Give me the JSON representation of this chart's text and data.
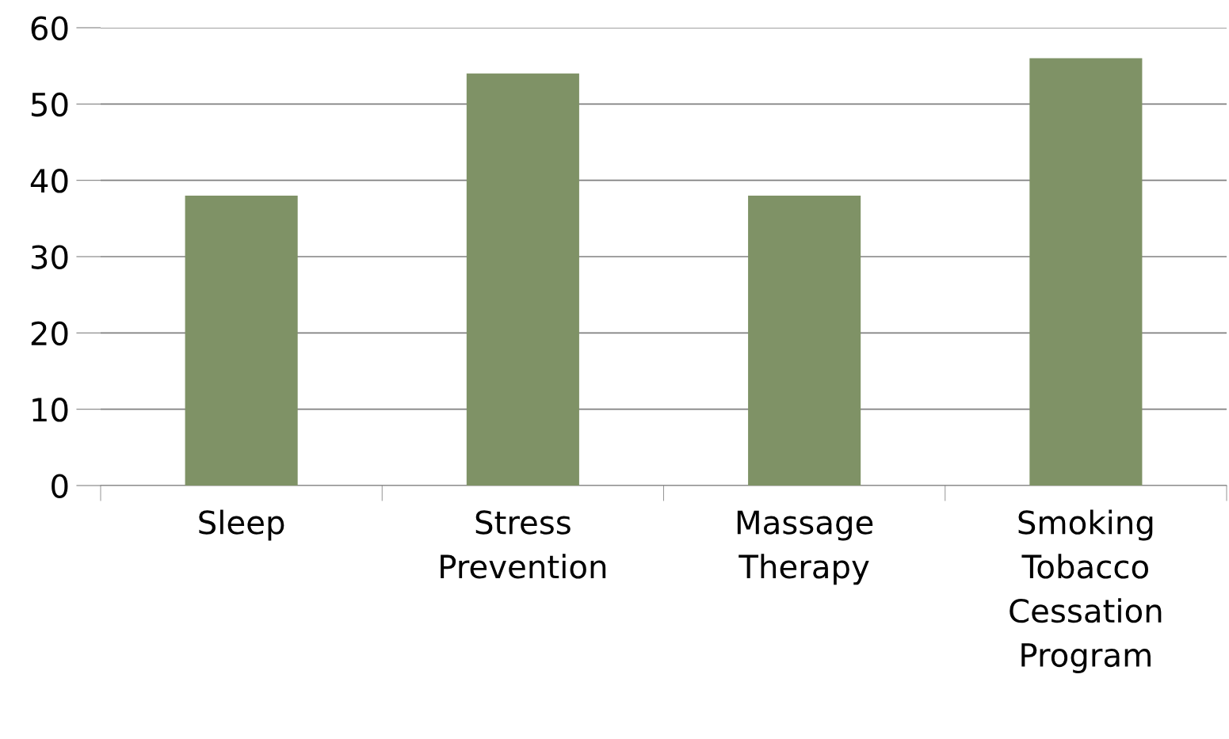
{
  "chart_data": {
    "type": "bar",
    "categories": [
      "Sleep",
      "Stress\nPrevention",
      "Massage\nTherapy",
      "Smoking\nTobacco\nCessation\nProgram"
    ],
    "values": [
      38,
      54,
      38,
      56
    ],
    "color": "#7f9266",
    "ylim": [
      0,
      60
    ],
    "yticks": [
      0,
      10,
      20,
      30,
      40,
      50,
      60
    ],
    "grid": "y"
  }
}
